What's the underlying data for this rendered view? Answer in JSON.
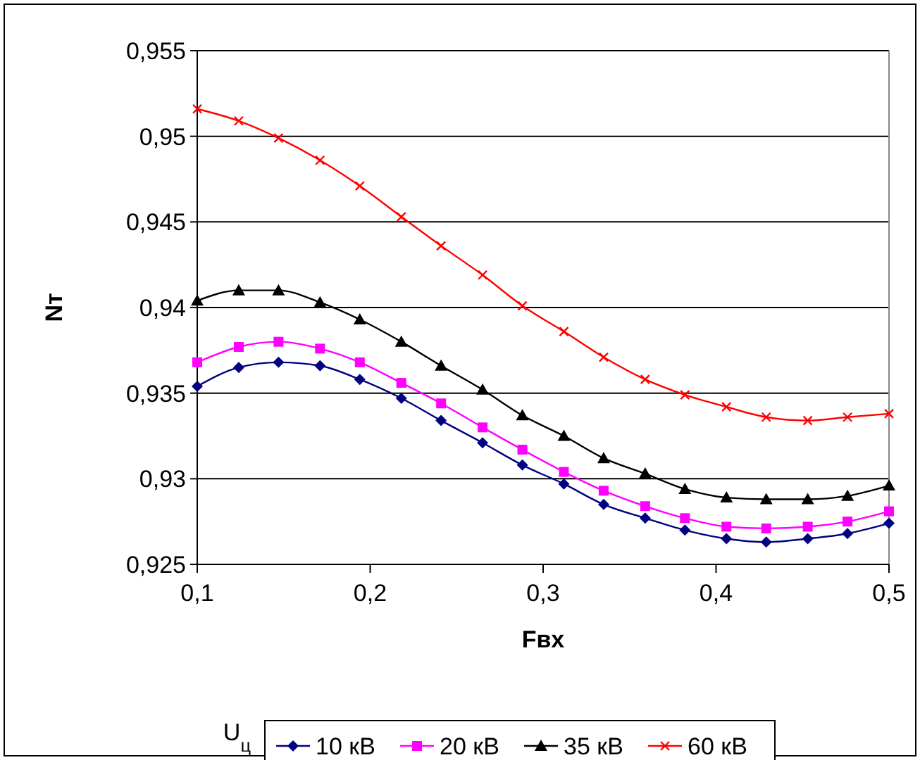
{
  "chart_data": {
    "type": "line",
    "xlabel": "Fвх",
    "ylabel": "Nт",
    "legend_title": "U$_{ц}$",
    "legend": "bottom",
    "grid": "y",
    "x": [
      0.1,
      0.124,
      0.147,
      0.171,
      0.194,
      0.218,
      0.241,
      0.265,
      0.288,
      0.312,
      0.335,
      0.359,
      0.382,
      0.406,
      0.429,
      0.453,
      0.476,
      0.5
    ],
    "xlim": [
      0.1,
      0.5
    ],
    "xticks": [
      {
        "value": 0.1,
        "label": "0,1"
      },
      {
        "value": 0.2,
        "label": "0,2"
      },
      {
        "value": 0.3,
        "label": "0,3"
      },
      {
        "value": 0.4,
        "label": "0,4"
      },
      {
        "value": 0.5,
        "label": "0,5"
      }
    ],
    "ylim": [
      0.925,
      0.955
    ],
    "yticks": [
      {
        "value": 0.925,
        "label": "0,925"
      },
      {
        "value": 0.93,
        "label": "0,93"
      },
      {
        "value": 0.935,
        "label": "0,935"
      },
      {
        "value": 0.94,
        "label": "0,94"
      },
      {
        "value": 0.945,
        "label": "0,945"
      },
      {
        "value": 0.95,
        "label": "0,95"
      },
      {
        "value": 0.955,
        "label": "0,955"
      }
    ],
    "series": [
      {
        "name": "10 кВ",
        "color": "#000080",
        "marker": "diamond",
        "values": [
          0.9354,
          0.9365,
          0.9368,
          0.9366,
          0.9358,
          0.9347,
          0.9334,
          0.9321,
          0.9308,
          0.9297,
          0.9285,
          0.9277,
          0.927,
          0.9265,
          0.9263,
          0.9265,
          0.9268,
          0.9274
        ]
      },
      {
        "name": "20 кВ",
        "color": "#ff00ff",
        "marker": "square",
        "values": [
          0.9368,
          0.9377,
          0.938,
          0.9376,
          0.9368,
          0.9356,
          0.9344,
          0.933,
          0.9317,
          0.9304,
          0.9293,
          0.9284,
          0.9277,
          0.9272,
          0.9271,
          0.9272,
          0.9275,
          0.9281
        ]
      },
      {
        "name": "35 кВ",
        "color": "#000000",
        "marker": "triangle",
        "values": [
          0.9404,
          0.941,
          0.941,
          0.9403,
          0.9393,
          0.938,
          0.9366,
          0.9352,
          0.9337,
          0.9325,
          0.9312,
          0.9303,
          0.9294,
          0.9289,
          0.9288,
          0.9288,
          0.929,
          0.9296
        ]
      },
      {
        "name": "60 кВ",
        "color": "#ff0000",
        "marker": "cross",
        "values": [
          0.9516,
          0.9509,
          0.9499,
          0.9486,
          0.9471,
          0.9453,
          0.9436,
          0.9419,
          0.9401,
          0.9386,
          0.9371,
          0.9358,
          0.9349,
          0.9342,
          0.9336,
          0.9334,
          0.9336,
          0.9338
        ]
      }
    ]
  }
}
